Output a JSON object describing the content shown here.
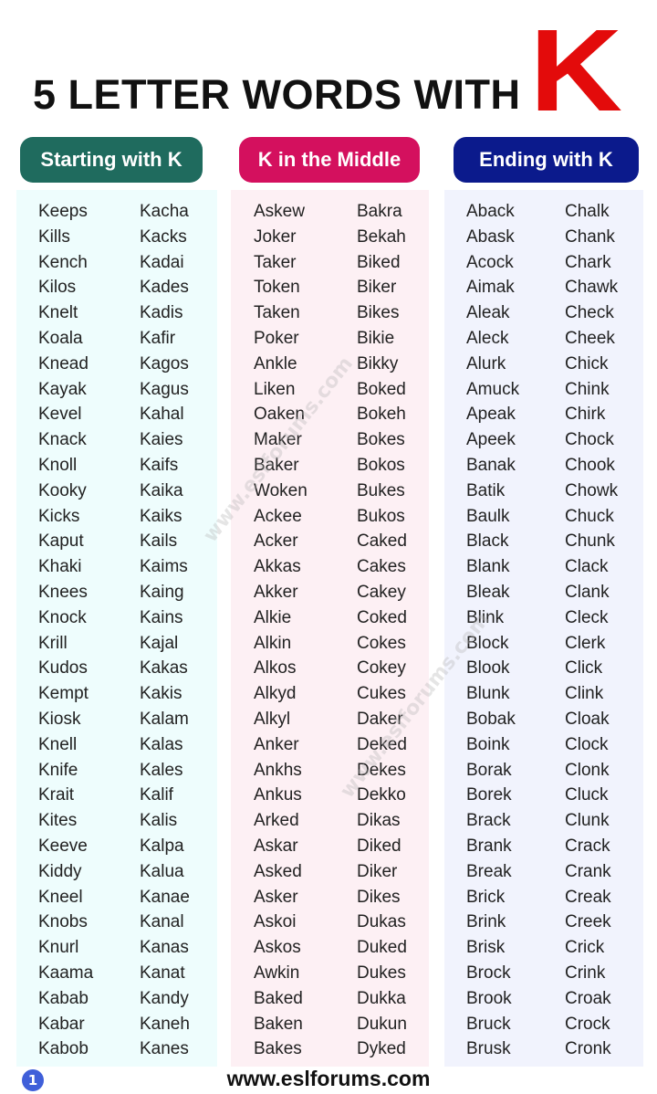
{
  "title": "5 LETTER WORDS WITH",
  "title_letter": "K",
  "colors": {
    "starting": "#1f6b5e",
    "middle": "#d4105e",
    "ending": "#0b1a8c",
    "letter": "#e30b0b"
  },
  "sections": [
    {
      "label": "Starting with K",
      "columns": [
        [
          "Keeps",
          "Kills",
          "Kench",
          "Kilos",
          "Knelt",
          "Koala",
          "Knead",
          "Kayak",
          "Kevel",
          "Knack",
          "Knoll",
          "Kooky",
          "Kicks",
          "Kaput",
          "Khaki",
          "Knees",
          "Knock",
          "Krill",
          "Kudos",
          "Kempt",
          "Kiosk",
          "Knell",
          "Knife",
          "Krait",
          "Kites",
          "Keeve",
          "Kiddy",
          "Kneel",
          "Knobs",
          "Knurl",
          "Kaama",
          "Kabab",
          "Kabar",
          "Kabob"
        ],
        [
          "Kacha",
          "Kacks",
          "Kadai",
          "Kades",
          "Kadis",
          "Kafir",
          "Kagos",
          "Kagus",
          "Kahal",
          "Kaies",
          "Kaifs",
          "Kaika",
          "Kaiks",
          "Kails",
          "Kaims",
          "Kaing",
          "Kains",
          "Kajal",
          "Kakas",
          "Kakis",
          "Kalam",
          "Kalas",
          "Kales",
          "Kalif",
          "Kalis",
          "Kalpa",
          "Kalua",
          "Kanae",
          "Kanal",
          "Kanas",
          "Kanat",
          "Kandy",
          "Kaneh",
          "Kanes"
        ]
      ]
    },
    {
      "label": "K in the Middle",
      "columns": [
        [
          "Askew",
          "Joker",
          "Taker",
          "Token",
          "Taken",
          "Poker",
          "Ankle",
          "Liken",
          "Oaken",
          "Maker",
          "Baker",
          "Woken",
          "Ackee",
          "Acker",
          "Akkas",
          "Akker",
          "Alkie",
          "Alkin",
          "Alkos",
          "Alkyd",
          "Alkyl",
          "Anker",
          "Ankhs",
          "Ankus",
          "Arked",
          "Askar",
          "Asked",
          "Asker",
          "Askoi",
          "Askos",
          "Awkin",
          "Baked",
          "Baken",
          "Bakes"
        ],
        [
          "Bakra",
          "Bekah",
          "Biked",
          "Biker",
          "Bikes",
          "Bikie",
          "Bikky",
          "Boked",
          "Bokeh",
          "Bokes",
          "Bokos",
          "Bukes",
          "Bukos",
          "Caked",
          "Cakes",
          "Cakey",
          "Coked",
          "Cokes",
          "Cokey",
          "Cukes",
          "Daker",
          "Deked",
          "Dekes",
          "Dekko",
          "Dikas",
          "Diked",
          "Diker",
          "Dikes",
          "Dukas",
          "Duked",
          "Dukes",
          "Dukka",
          "Dukun",
          "Dyked"
        ]
      ]
    },
    {
      "label": "Ending with K",
      "columns": [
        [
          "Aback",
          "Abask",
          "Acock",
          "Aimak",
          "Aleak",
          "Aleck",
          "Alurk",
          "Amuck",
          "Apeak",
          "Apeek",
          "Banak",
          "Batik",
          "Baulk",
          "Black",
          "Blank",
          "Bleak",
          "Blink",
          "Block",
          "Blook",
          "Blunk",
          "Bobak",
          "Boink",
          "Borak",
          "Borek",
          "Brack",
          "Brank",
          "Break",
          "Brick",
          "Brink",
          "Brisk",
          "Brock",
          "Brook",
          "Bruck",
          "Brusk"
        ],
        [
          "Chalk",
          "Chank",
          "Chark",
          "Chawk",
          "Check",
          "Cheek",
          "Chick",
          "Chink",
          "Chirk",
          "Chock",
          "Chook",
          "Chowk",
          "Chuck",
          "Chunk",
          "Clack",
          "Clank",
          "Cleck",
          "Clerk",
          "Click",
          "Clink",
          "Cloak",
          "Clock",
          "Clonk",
          "Cluck",
          "Clunk",
          "Crack",
          "Crank",
          "Creak",
          "Creek",
          "Crick",
          "Crink",
          "Croak",
          "Crock",
          "Cronk"
        ]
      ]
    }
  ],
  "watermark": "www.eslforums.com",
  "footer": "www.eslforums.com",
  "page_number": "1"
}
